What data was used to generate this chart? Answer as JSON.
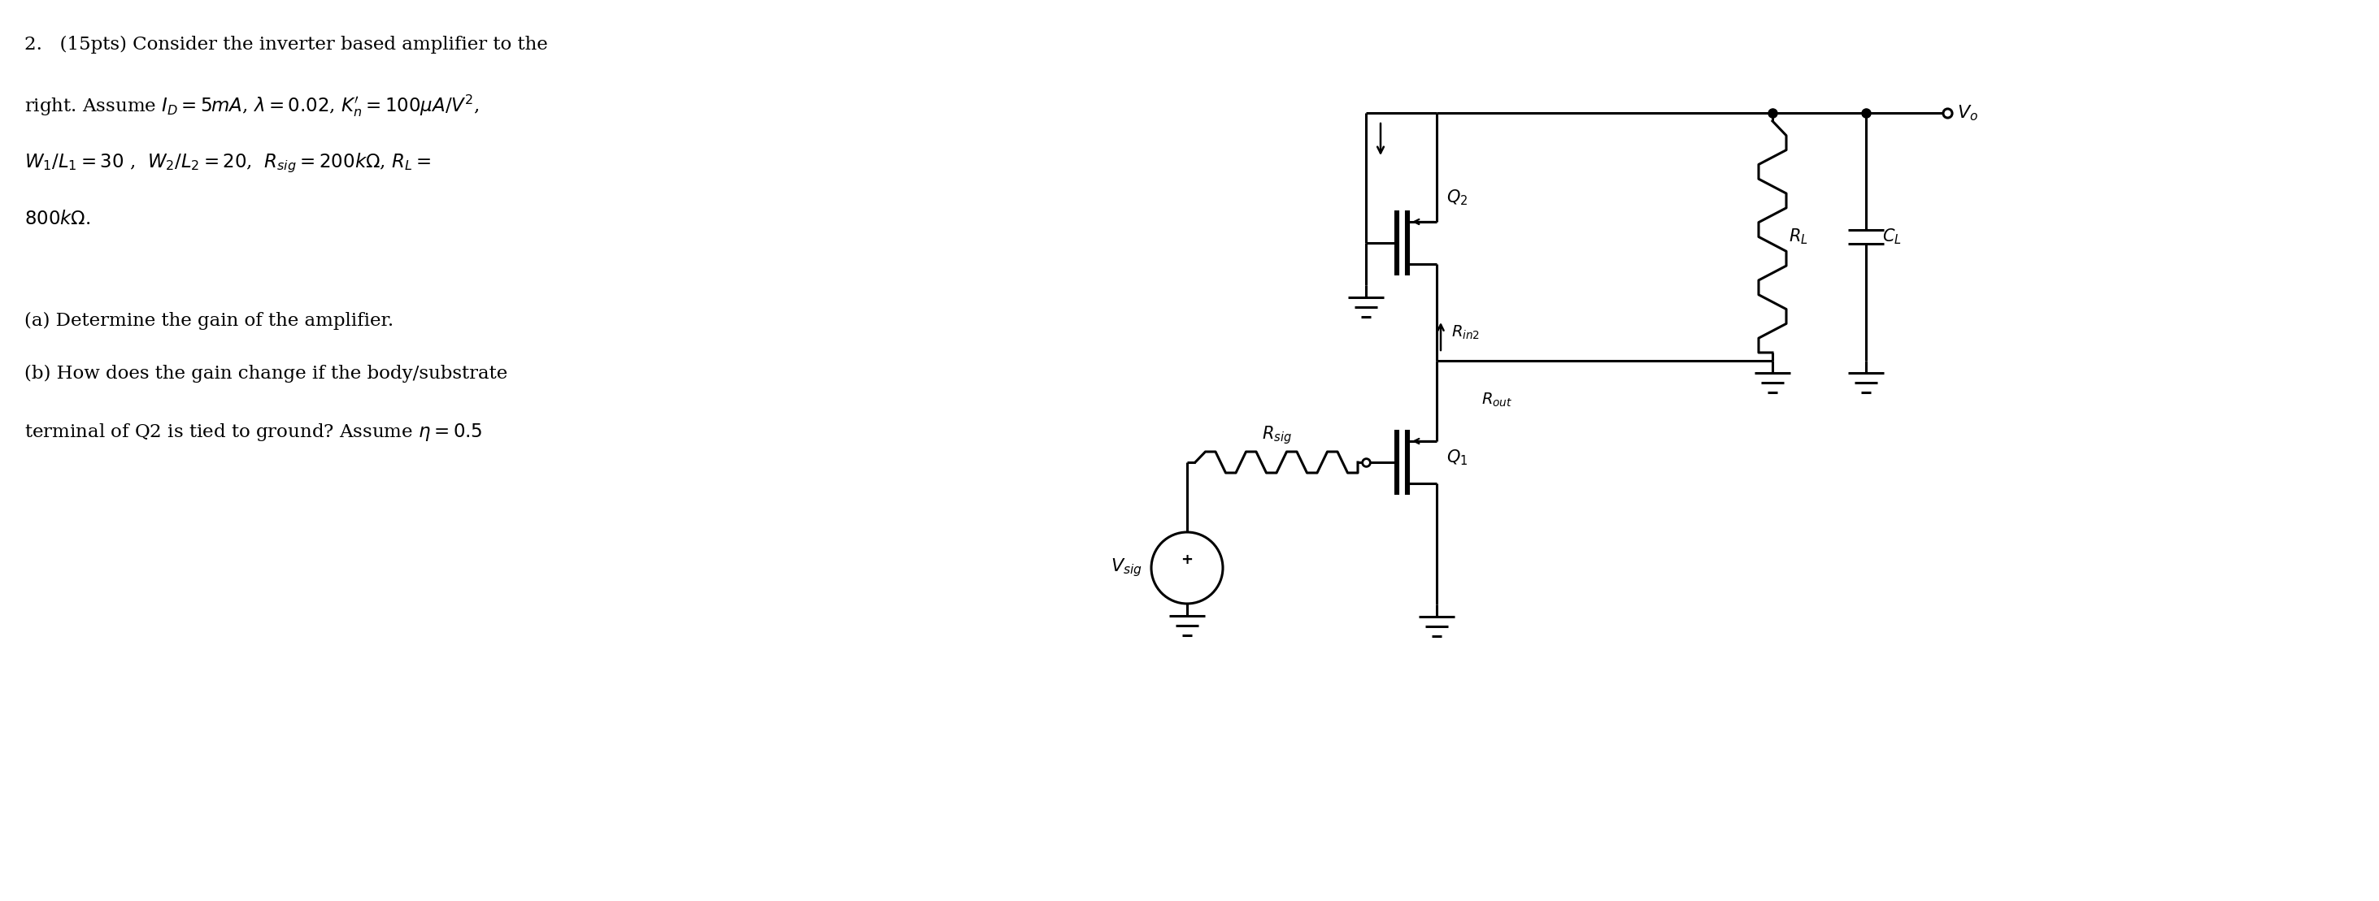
{
  "bg_color": "#ffffff",
  "text_color": "#000000",
  "line_color": "#000000",
  "fig_width": 29.26,
  "fig_height": 11.09,
  "title_line1": "2.   (15pts) Consider the inverter based amplifier to the",
  "title_line2": "right. Assume $I_D = 5mA$, $\\lambda = 0.02$, $K_n^{\\prime} = 100\\mu A/V^2$,",
  "title_line3": "$W_1/L_1 = 30$ ,  $W_2/L_2 = 20$,  $R_{sig} = 200k\\Omega$, $R_L =$",
  "title_line4": "$800k\\Omega$.",
  "sub_line1": "(a) Determine the gain of the amplifier.",
  "sub_line2": "(b) How does the gain change if the body/substrate",
  "sub_line3": "terminal of Q2 is tied to ground? Assume $\\eta = 0.5$"
}
